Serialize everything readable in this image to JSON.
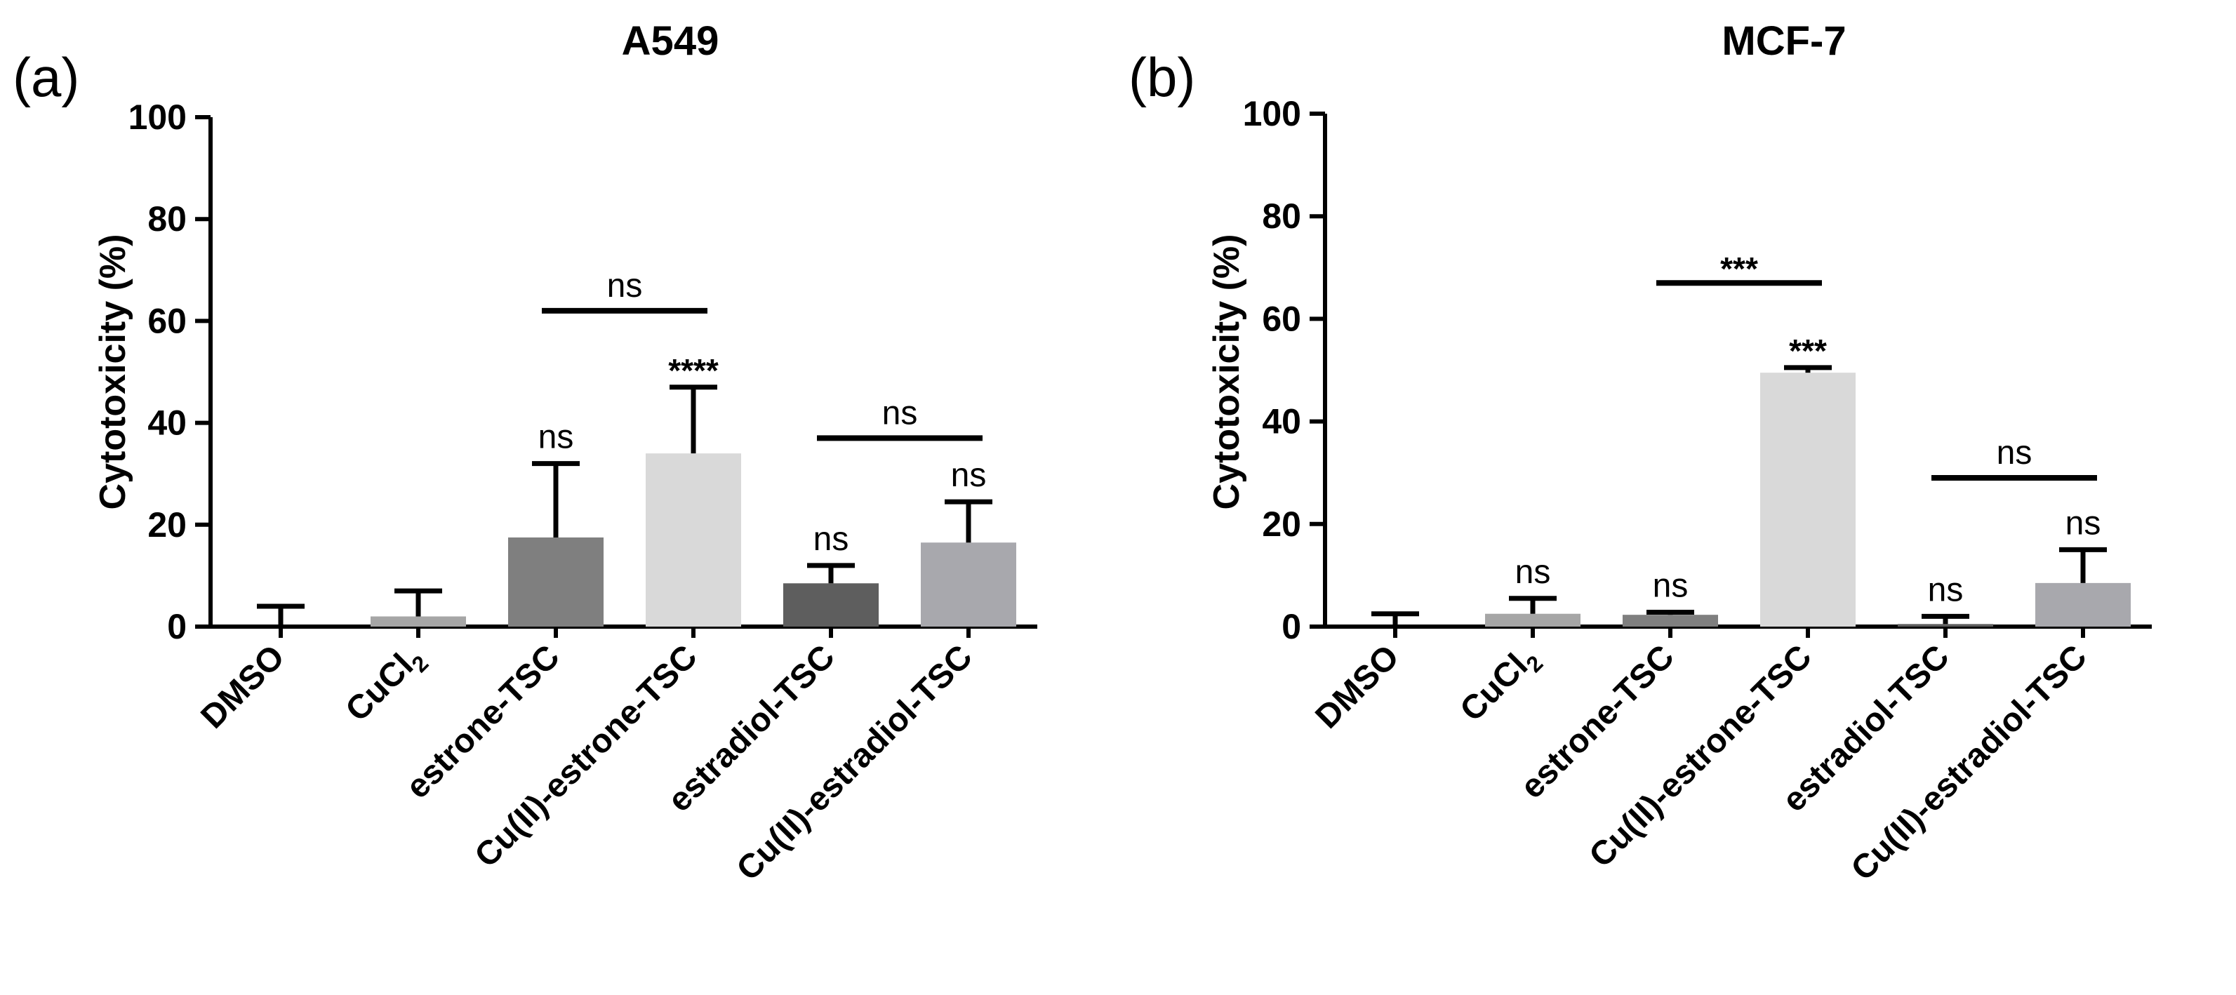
{
  "chart_data": [
    {
      "type": "bar",
      "panel_label": "(a)",
      "title": "A549",
      "ylabel": "Cytotoxicity (%)",
      "ylim": [
        0,
        100
      ],
      "yticks": [
        "0",
        "20",
        "40",
        "60",
        "80",
        "100"
      ],
      "categories": [
        "DMSO",
        "CuCl₂",
        "estrone-TSC",
        "Cu(II)-estrone-TSC",
        "estradiol-TSC",
        "Cu(II)-estradiol-TSC"
      ],
      "values": [
        0,
        2,
        17.5,
        34,
        8.5,
        16.5
      ],
      "errors": [
        4,
        5,
        14.5,
        13,
        3.5,
        8
      ],
      "bar_colors": [
        "#000000",
        "#a6a6a6",
        "#7f7f7f",
        "#d9d9d9",
        "#5e5e5e",
        "#a8a8ad"
      ],
      "annotations": [
        {
          "bar": 2,
          "text": "ns"
        },
        {
          "bar": 3,
          "text": "****"
        },
        {
          "bar": 4,
          "text": "ns"
        },
        {
          "bar": 5,
          "text": "ns"
        }
      ],
      "brackets": [
        {
          "from": 2,
          "to": 3,
          "y": 62,
          "text": "ns"
        },
        {
          "from": 4,
          "to": 5,
          "y": 37,
          "text": "ns"
        }
      ]
    },
    {
      "type": "bar",
      "panel_label": "(b)",
      "title": "MCF-7",
      "ylabel": "Cytotoxicity (%)",
      "ylim": [
        0,
        100
      ],
      "yticks": [
        "0",
        "20",
        "40",
        "60",
        "80",
        "100"
      ],
      "categories": [
        "DMSO",
        "CuCl₂",
        "estrone-TSC",
        "Cu(II)-estrone-TSC",
        "estradiol-TSC",
        "Cu(II)-estradiol-TSC"
      ],
      "values": [
        0,
        2.5,
        2.3,
        49.5,
        0.5,
        8.5
      ],
      "errors": [
        2.5,
        3,
        0.5,
        1,
        1.5,
        6.5
      ],
      "bar_colors": [
        "#000000",
        "#a6a6a6",
        "#7f7f7f",
        "#d9d9d9",
        "#5e5e5e",
        "#a8a8ad"
      ],
      "annotations": [
        {
          "bar": 1,
          "text": "ns"
        },
        {
          "bar": 2,
          "text": "ns"
        },
        {
          "bar": 3,
          "text": "***"
        },
        {
          "bar": 4,
          "text": "ns"
        },
        {
          "bar": 5,
          "text": "ns"
        }
      ],
      "brackets": [
        {
          "from": 2,
          "to": 3,
          "y": 67,
          "text": "***"
        },
        {
          "from": 4,
          "to": 5,
          "y": 29,
          "text": "ns"
        }
      ]
    }
  ]
}
